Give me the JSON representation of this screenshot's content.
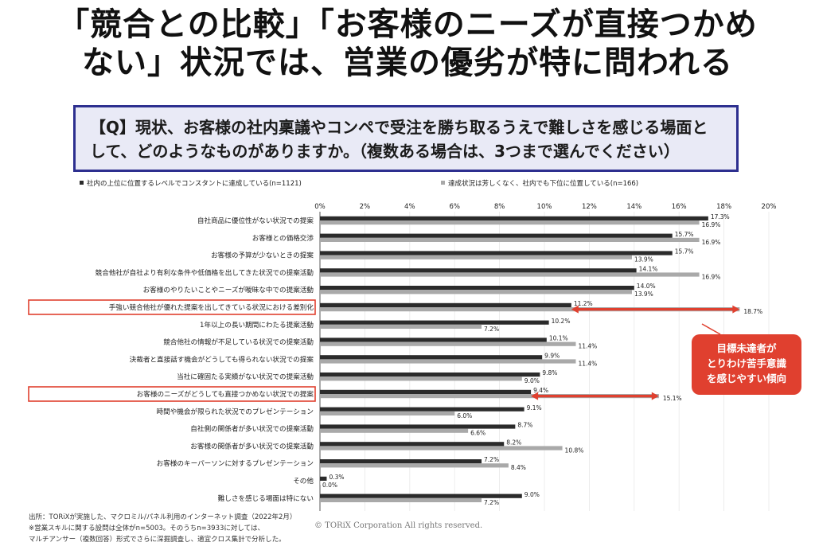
{
  "header": {
    "title_line1": "「競合との比較」「お客様のニーズが直接つかめ",
    "title_line2": "ない」状況では、営業の優劣が特に問われる",
    "question_line1": "【Q】現状、お客様の社内稟議やコンペで受注を勝ち取るうえで難しさを感じる場面と",
    "question_line2": "して、どのようなものがありますか。（複数ある場合は、3つまで選んでください）"
  },
  "chart_data": {
    "type": "bar",
    "orientation": "horizontal",
    "xlim": [
      0,
      20
    ],
    "ticks": [
      "0%",
      "2%",
      "4%",
      "6%",
      "8%",
      "10%",
      "12%",
      "14%",
      "16%",
      "18%",
      "20%"
    ],
    "series": [
      {
        "name": "社内の上位に位置するレベルでコンスタントに達成している(n=1121)",
        "color": "#2b2b2b",
        "values": [
          17.3,
          15.7,
          15.7,
          14.1,
          14.0,
          11.2,
          10.2,
          10.1,
          9.9,
          9.8,
          9.4,
          9.1,
          8.7,
          8.2,
          7.2,
          0.3,
          9.0
        ],
        "labels": [
          "17.3%",
          "15.7%",
          "15.7%",
          "14.1%",
          "14.0%",
          "11.2%",
          "10.2%",
          "10.1%",
          "9.9%",
          "9.8%",
          "9.4%",
          "9.1%",
          "8.7%",
          "8.2%",
          "7.2%",
          "0.3%",
          "9.0%"
        ]
      },
      {
        "name": "達成状況は芳しくなく、社内でも下位に位置している(n=166)",
        "color": "#a9a9a9",
        "values": [
          16.9,
          16.9,
          13.9,
          16.9,
          13.9,
          18.7,
          7.2,
          11.4,
          11.4,
          9.0,
          15.1,
          6.0,
          6.6,
          10.8,
          8.4,
          0.0,
          7.2
        ],
        "labels": [
          "16.9%",
          "16.9%",
          "13.9%",
          "16.9%",
          "13.9%",
          "18.7%",
          "7.2%",
          "11.4%",
          "11.4%",
          "9.0%",
          "15.1%",
          "6.0%",
          "6.6%",
          "10.8%",
          "8.4%",
          "0.0%",
          "7.2%"
        ]
      }
    ],
    "categories": [
      "自社商品に優位性がない状況での提案",
      "お客様との価格交渉",
      "お客様の予算が少ないときの提案",
      "競合他社が自社より有利な条件や低価格を出してきた状況での提案活動",
      "お客様のやりたいことやニーズが曖昧な中での提案活動",
      "手強い競合他社が優れた提案を出してきている状況における差別化",
      "1年以上の長い期間にわたる提案活動",
      "競合他社の情報が不足している状況での提案活動",
      "決裁者と直接話す機会がどうしても得られない状況での提案",
      "当社に確固たる実績がない状況での提案活動",
      "お客様のニーズがどうしても直接つかめない状況での提案",
      "時間や機会が限られた状況でのプレゼンテーション",
      "自社側の関係者が多い状況での提案活動",
      "お客様の関係者が多い状況での提案活動",
      "お客様のキーパーソンに対するプレゼンテーション",
      "その他",
      "難しさを感じる場面は特にない"
    ],
    "highlighted_categories": [
      5,
      10
    ],
    "callout": "目標未達者が\nとりわけ苦手意識\nを感じやすい傾向",
    "callout_color": "#e0402f"
  },
  "footer": {
    "note1": "出所：TORiXが実施した、マクロミル/パネル利用のインターネット調査（2022年2月）",
    "note2": "※営業スキルに関する設問は全体がn=5003。そのうちn=3933に対しては、",
    "note3": "マルチアンサー（複数回答）形式でさらに深掘調査し、適宜クロス集計で分析した。",
    "copyright": "© TORiX Corporation All rights reserved."
  }
}
